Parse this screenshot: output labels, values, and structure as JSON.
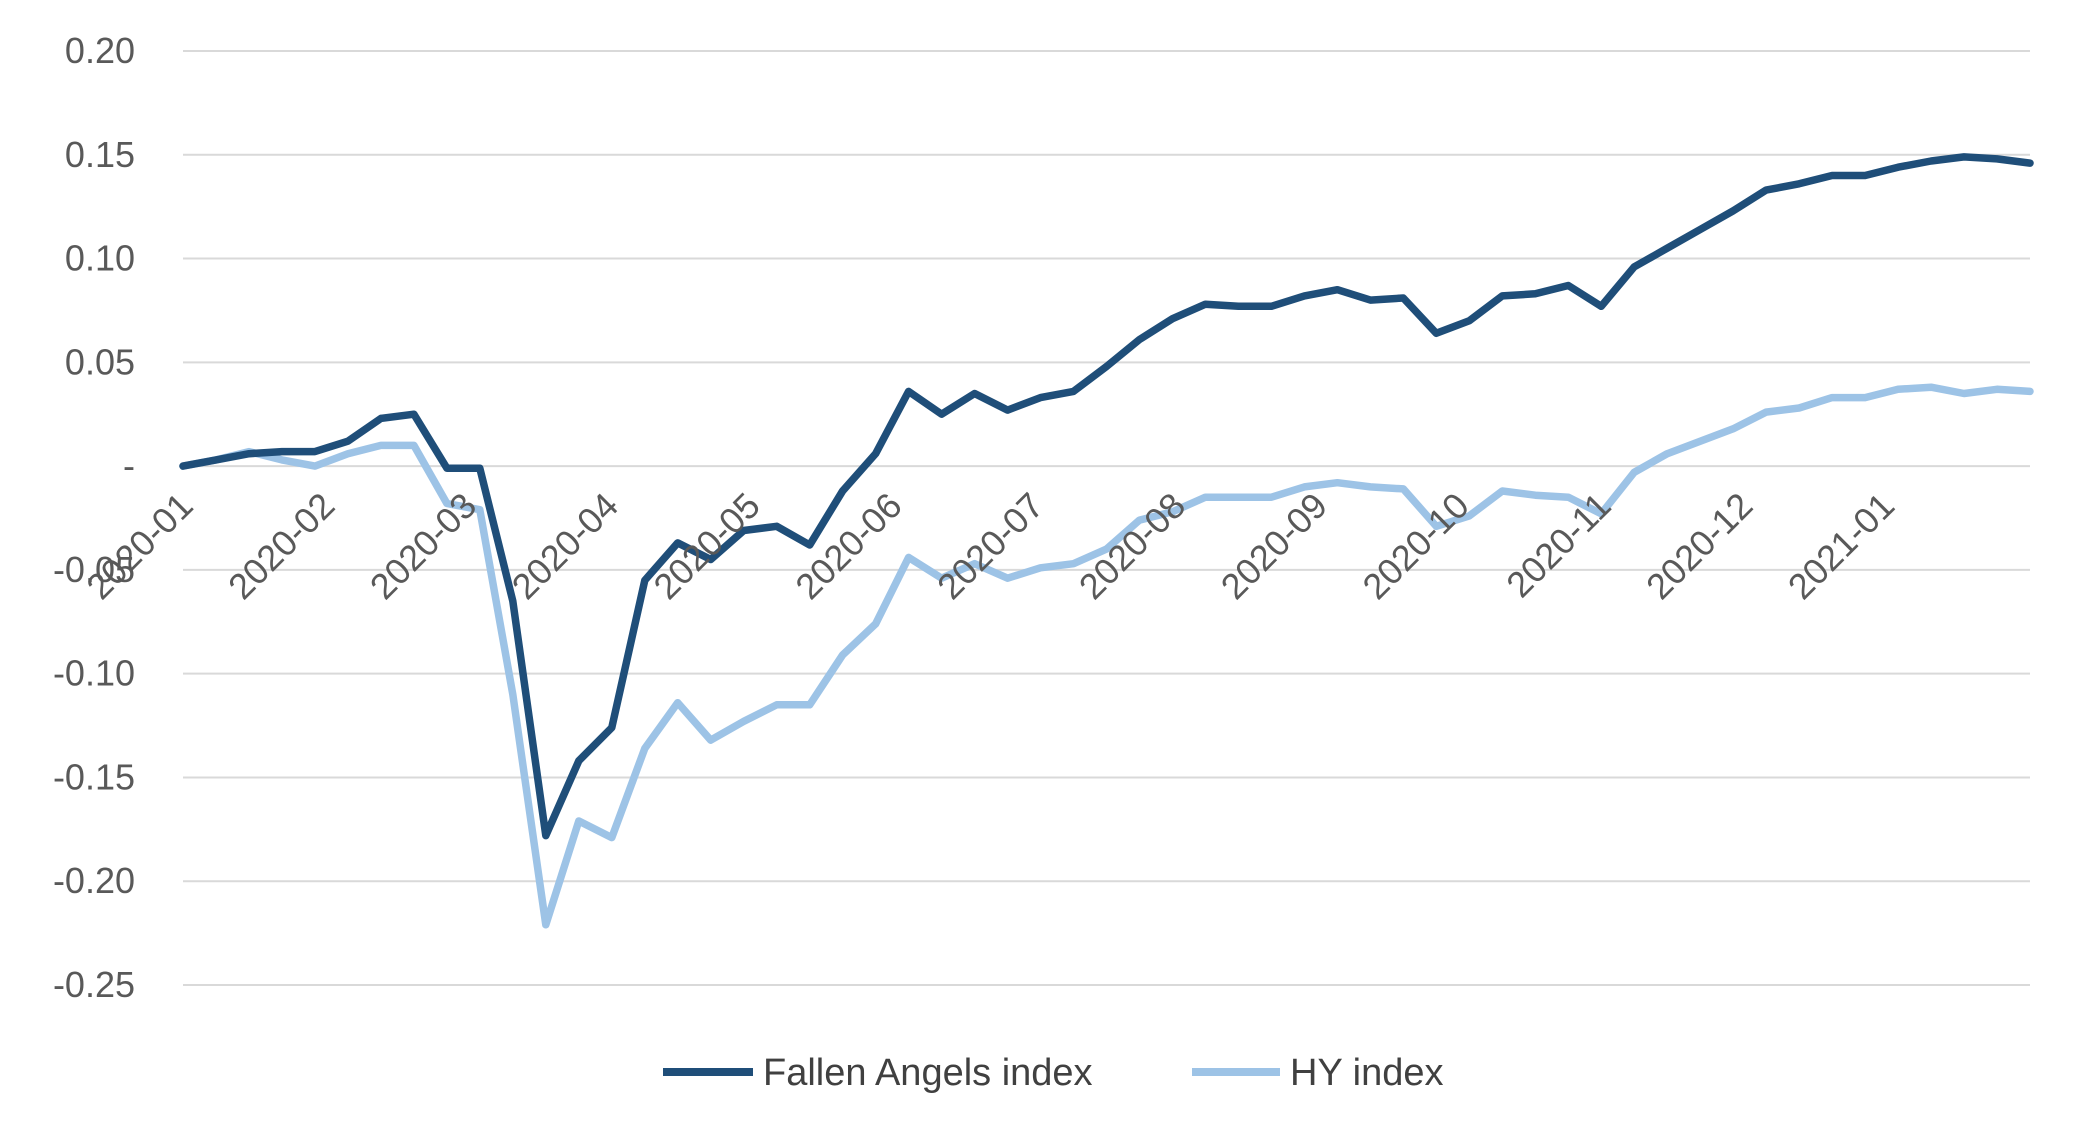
{
  "chart_data": {
    "type": "line",
    "title": "",
    "xlabel": "",
    "ylabel": "",
    "ylim": [
      -0.25,
      0.2
    ],
    "y_ticks": [
      0.2,
      0.15,
      0.1,
      0.05,
      0.0,
      -0.05,
      -0.1,
      -0.15,
      -0.2,
      -0.25
    ],
    "y_tick_labels": [
      "0.20",
      "0.15",
      "0.10",
      "0.05",
      "-",
      "-0.05",
      "-0.10",
      "-0.15",
      "-0.20",
      "-0.25"
    ],
    "x_tick_labels": [
      "2020-01",
      "2020-02",
      "2020-03",
      "2020-04",
      "2020-05",
      "2020-06",
      "2020-07",
      "2020-08",
      "2020-09",
      "2020-10",
      "2020-11",
      "2020-12",
      "2021-01"
    ],
    "grid": true,
    "legend_position": "bottom",
    "series": [
      {
        "name": "Fallen Angels index",
        "color": "#1f4e79",
        "values": [
          0.0,
          0.003,
          0.006,
          0.007,
          0.007,
          0.012,
          0.023,
          0.025,
          -0.001,
          -0.001,
          -0.065,
          -0.178,
          -0.142,
          -0.126,
          -0.055,
          -0.037,
          -0.045,
          -0.031,
          -0.029,
          -0.038,
          -0.012,
          0.006,
          0.036,
          0.025,
          0.035,
          0.027,
          0.033,
          0.036,
          0.048,
          0.061,
          0.071,
          0.078,
          0.077,
          0.077,
          0.082,
          0.085,
          0.08,
          0.081,
          0.064,
          0.07,
          0.082,
          0.083,
          0.087,
          0.077,
          0.096,
          0.105,
          0.114,
          0.123,
          0.133,
          0.136,
          0.14,
          0.14,
          0.144,
          0.147,
          0.149,
          0.148,
          0.146
        ]
      },
      {
        "name": "HY index",
        "color": "#9dc3e6",
        "values": [
          0.0,
          0.003,
          0.007,
          0.003,
          0.0,
          0.006,
          0.01,
          0.01,
          -0.018,
          -0.021,
          -0.11,
          -0.221,
          -0.171,
          -0.179,
          -0.136,
          -0.114,
          -0.132,
          -0.123,
          -0.115,
          -0.115,
          -0.091,
          -0.076,
          -0.044,
          -0.054,
          -0.047,
          -0.054,
          -0.049,
          -0.047,
          -0.04,
          -0.026,
          -0.022,
          -0.015,
          -0.015,
          -0.015,
          -0.01,
          -0.008,
          -0.01,
          -0.011,
          -0.029,
          -0.024,
          -0.012,
          -0.014,
          -0.015,
          -0.023,
          -0.003,
          0.006,
          0.012,
          0.018,
          0.026,
          0.028,
          0.033,
          0.033,
          0.037,
          0.038,
          0.035,
          0.037,
          0.036
        ]
      }
    ]
  }
}
